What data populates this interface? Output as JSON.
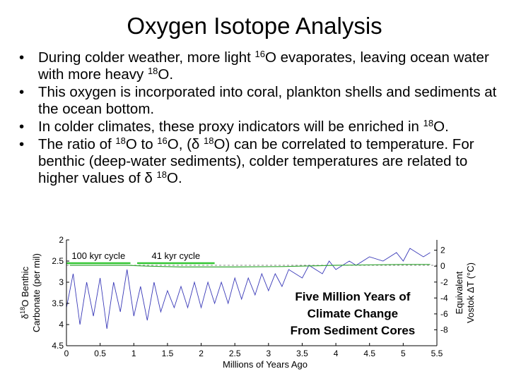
{
  "slide": {
    "title": "Oxygen Isotope Analysis",
    "bullets": [
      {
        "t1": "During colder weather, more light ",
        "s1": "16",
        "t2": "O evaporates, leaving ocean water with more heavy ",
        "s2": "18",
        "t3": "O."
      },
      {
        "text": "This oxygen is incorporated into coral, plankton shells and sediments at the ocean bottom."
      },
      {
        "t1": "In colder climates,  these proxy indicators will be enriched in ",
        "s1": "18",
        "t2": "O."
      },
      {
        "t1": "The ratio of ",
        "s1": "18",
        "t2": "O to ",
        "s2": "16",
        "t3": "O,  (δ ",
        "s3": "18",
        "t4": "O) can be correlated to temperature.  For benthic (deep-water sediments), colder temperatures are related to higher values of δ ",
        "s4": "18",
        "t5": "O."
      }
    ]
  },
  "chart_data": {
    "type": "line",
    "xlabel": "Millions of Years Ago",
    "ylabel_left_prefix": "δ",
    "ylabel_left_sup": "18",
    "ylabel_left_suffix": "O Benthic",
    "ylabel_left_line2": "Carbonate (per mil)",
    "ylabel_right_line1": "Equivalent",
    "ylabel_right_line2": "Vostok ΔT (°C)",
    "xlim": [
      0,
      5.5
    ],
    "ylim_left": [
      4.5,
      2
    ],
    "ylim_right": [
      -10,
      3.3
    ],
    "x_ticks": [
      0,
      0.5,
      1,
      1.5,
      2,
      2.5,
      3,
      3.5,
      4,
      4.5,
      5,
      5.5
    ],
    "x_tick_labels": [
      "0",
      "0.5",
      "1",
      "1.5",
      "2",
      "2.5",
      "3",
      "3.5",
      "4",
      "4.5",
      "5",
      "5.5"
    ],
    "y_ticks_left": [
      2,
      2.5,
      3,
      3.5,
      4,
      4.5
    ],
    "y_tick_labels_left": [
      "2",
      "2.5",
      "3",
      "3.5",
      "4",
      "4.5"
    ],
    "y_ticks_right": [
      2,
      0,
      -2,
      -4,
      -6,
      -8
    ],
    "y_tick_labels_right": [
      "2",
      "0",
      "-2",
      "-4",
      "-6",
      "-8"
    ],
    "series": [
      {
        "name": "",
        "color": "#3a3ab8",
        "points": [
          [
            0,
            3.6
          ],
          [
            0.1,
            2.8
          ],
          [
            0.2,
            4.0
          ],
          [
            0.3,
            3.0
          ],
          [
            0.4,
            3.8
          ],
          [
            0.5,
            2.9
          ],
          [
            0.6,
            4.1
          ],
          [
            0.7,
            3.0
          ],
          [
            0.8,
            3.7
          ],
          [
            0.9,
            2.7
          ],
          [
            1.0,
            3.8
          ],
          [
            1.1,
            3.1
          ],
          [
            1.2,
            3.9
          ],
          [
            1.3,
            3.0
          ],
          [
            1.4,
            3.7
          ],
          [
            1.5,
            3.2
          ],
          [
            1.6,
            3.6
          ],
          [
            1.7,
            3.1
          ],
          [
            1.8,
            3.6
          ],
          [
            1.9,
            3.0
          ],
          [
            2.0,
            3.6
          ],
          [
            2.1,
            3.0
          ],
          [
            2.2,
            3.5
          ],
          [
            2.3,
            3.0
          ],
          [
            2.4,
            3.5
          ],
          [
            2.5,
            2.9
          ],
          [
            2.6,
            3.4
          ],
          [
            2.7,
            2.9
          ],
          [
            2.8,
            3.3
          ],
          [
            2.9,
            2.8
          ],
          [
            3.0,
            3.2
          ],
          [
            3.1,
            2.8
          ],
          [
            3.2,
            3.1
          ],
          [
            3.3,
            2.7
          ],
          [
            3.5,
            2.9
          ],
          [
            3.6,
            2.6
          ],
          [
            3.8,
            2.8
          ],
          [
            3.9,
            2.5
          ],
          [
            4.0,
            2.7
          ],
          [
            4.2,
            2.5
          ],
          [
            4.3,
            2.6
          ],
          [
            4.5,
            2.4
          ],
          [
            4.7,
            2.5
          ],
          [
            4.9,
            2.3
          ],
          [
            5.0,
            2.5
          ],
          [
            5.1,
            2.2
          ],
          [
            5.3,
            2.4
          ],
          [
            5.4,
            2.3
          ]
        ]
      },
      {
        "name": "",
        "color": "#34a834",
        "style": "trend",
        "points": [
          [
            0.05,
            2.6
          ],
          [
            0.5,
            2.6
          ],
          [
            0.9,
            2.6
          ],
          [
            1.2,
            2.62
          ],
          [
            1.7,
            2.64
          ],
          [
            2.5,
            2.64
          ],
          [
            3.2,
            2.63
          ],
          [
            4.0,
            2.6
          ],
          [
            5.0,
            2.58
          ],
          [
            5.4,
            2.58
          ]
        ]
      }
    ],
    "reference_line": {
      "value": 2.6,
      "style": "dashed",
      "color": "#888888"
    },
    "annotations": [
      {
        "label": "100 kyr cycle",
        "x_start": 0,
        "x_end": 0.95,
        "color": "#34c734"
      },
      {
        "label": "41 kyr cycle",
        "x_start": 1.05,
        "x_end": 2.2,
        "color": "#34c734"
      }
    ],
    "overlay_text": [
      "Five Million Years of",
      "Climate Change",
      "From Sediment Cores"
    ]
  }
}
